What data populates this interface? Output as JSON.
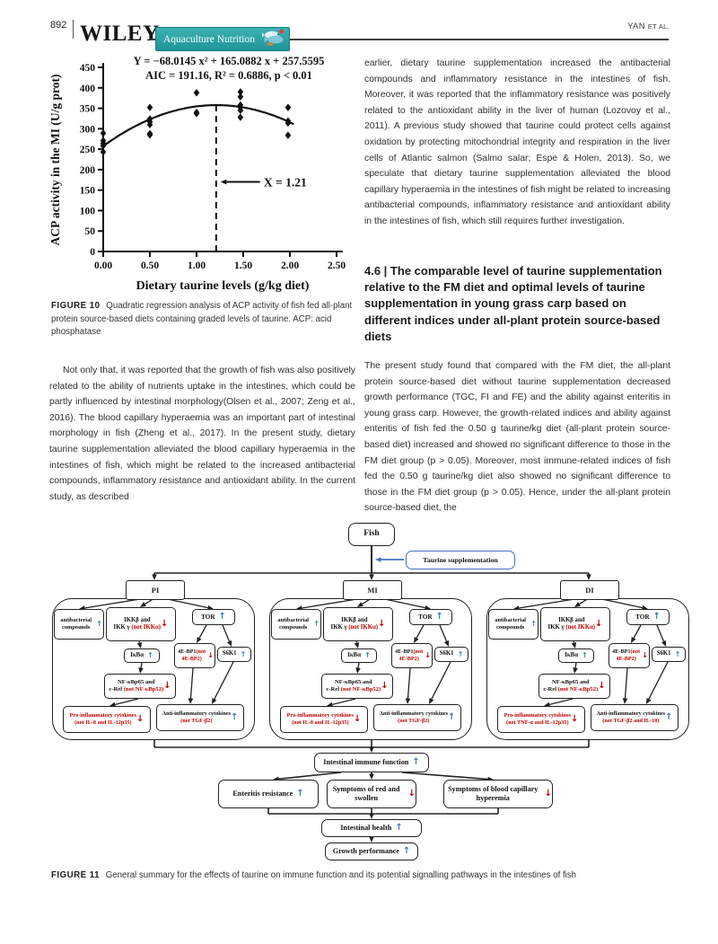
{
  "header": {
    "page_number": "892",
    "publisher": "WILEY",
    "journal": "Aquaculture Nutrition",
    "running_head_name": "YAN",
    "running_head_etal": "ET AL."
  },
  "chart_data": {
    "type": "scatter",
    "title_line1": "Y = −68.0145 x² + 165.0882 x + 257.5595",
    "title_line2": "AIC = 191.16, R² = 0.6886, p < 0.01",
    "xlabel": "Dietary taurine levels (g/kg diet)",
    "ylabel": "ACP activity in the MI (U/g prot)",
    "xlim": [
      0,
      2.5
    ],
    "ylim": [
      0,
      450
    ],
    "xtick_step": 0.5,
    "ytick_step": 50,
    "grid": false,
    "points": [
      {
        "x": 0.0,
        "y": [
          243,
          258,
          264,
          271,
          289
        ]
      },
      {
        "x": 0.5,
        "y": [
          285,
          288,
          310,
          317,
          324,
          352
        ]
      },
      {
        "x": 1.0,
        "y": [
          337,
          340,
          388
        ]
      },
      {
        "x": 1.47,
        "y": [
          328,
          345,
          352,
          358,
          378,
          390
        ]
      },
      {
        "x": 1.98,
        "y": [
          284,
          314,
          319,
          352
        ]
      }
    ],
    "curve": {
      "type": "quadratic",
      "a": -68.0145,
      "b": 165.0882,
      "c": 257.5595,
      "x_start": 0,
      "x_end": 2.05
    },
    "optimum": {
      "x": 1.21,
      "label": "X = 1.21",
      "annotation_y": 170
    }
  },
  "figure10": {
    "label": "FIGURE 10",
    "caption": "Quadratic regression analysis of ACP activity of fish fed all-plant protein source-based diets containing graded levels of taurine. ACP: acid phosphatase"
  },
  "left_column": {
    "paragraph": "Not only that, it was reported that the growth of fish was also positively related to the ability of nutrients uptake in the intestines, which could be partly influenced by intestinal morphology(Olsen et al., 2007; Zeng et al., 2016). The blood capillary hyperaemia was an important part of intestinal morphology in fish (Zheng et al., 2017). In the present study, dietary taurine supplementation alleviated the blood capillary hyperaemia in the intestines of fish, which might be related to the increased antibacterial compounds, inflammatory resistance and antioxidant ability. In the current study, as described"
  },
  "right_column": {
    "paragraph1": "earlier, dietary taurine supplementation increased the antibacterial compounds and inflammatory resistance in the intestines of fish. Moreover, it was reported that the inflammatory resistance was positively related to the antioxidant ability in the liver of human (Lozovoy et al., 2011). A previous study showed that taurine could protect cells against oxidation by protecting mitochondrial integrity and respiration in the liver cells of Atlantic salmon (Salmo salar; Espe & Holen, 2013). So, we speculate that dietary taurine supplementation alleviated the blood capillary hyperaemia in the intestines of fish might be related to increasing antibacterial compounds, inflammatory resistance and antioxidant ability in the intestines of fish, which still requires further investigation.",
    "section_heading": "4.6  |  The comparable level of taurine supplementation relative to the FM diet and optimal levels of taurine supplementation in young grass carp based on different indices under all-plant protein source-based diets",
    "paragraph2": "The present study found that compared with the FM diet, the all-plant protein source-based diet without taurine supplementation decreased growth performance (TGC, FI and FE) and the ability against enteritis in young grass carp. However, the growth-related indices and ability against enteritis of fish fed the 0.50 g taurine/kg diet (all-plant protein source-based diet) increased and showed no significant difference to those in the FM diet group (p > 0.05). Moreover, most immune-related indices of fish fed the 0.50 g taurine/kg diet also showed no significant difference to those in the FM diet group (p > 0.05). Hence, under the all-plant protein source-based diet, the"
  },
  "figure11": {
    "label": "FIGURE 11",
    "caption": "General summary for the effects of taurine on immune function and its potential signalling pathways in the intestines of fish",
    "fish": "Fish",
    "taurine": "Taurine supplementation",
    "panels": [
      {
        "name": "PI",
        "antibacterial": "antibacterial compounds",
        "ikk1": "IKKβ and",
        "ikk2": "IKK γ",
        "ikk_not": "(not IKKα)",
        "tor": "TOR",
        "ikba": "IκBα",
        "bp1": "4E-BP1",
        "bp1_not": "(not 4E-BP2)",
        "s6k1": "S6K1",
        "nfkb1": "NF-κBp65 and",
        "nfkb2": "c-Rel",
        "nfkb_not": "(not NF-κBp52)",
        "pro": "Pro-inflammatory cytokines",
        "pro_not": "(not IL-8 and IL-12p35)",
        "anti": "Anti-inflammatory cytokines",
        "anti_not": "(not TGF-β2)"
      },
      {
        "name": "MI",
        "antibacterial": "antibacterial compounds",
        "ikk1": "IKKβ and",
        "ikk2": "IKK γ",
        "ikk_not": "(not IKKα)",
        "tor": "TOR",
        "ikba": "IκBα",
        "bp1": "4E-BP1",
        "bp1_not": "(not 4E-BP2)",
        "s6k1": "S6K1",
        "nfkb1": "NF-κBp65 and",
        "nfkb2": "c-Rel",
        "nfkb_not": "(not NF-κBp52)",
        "pro": "Pro-inflammatory cytokines",
        "pro_not": "(not IL-8 and IL-12p35)",
        "anti": "Anti-inflammatory cytokines",
        "anti_not": "(not TGF-β2)"
      },
      {
        "name": "DI",
        "antibacterial": "antibacterial compounds",
        "ikk1": "IKKβ and",
        "ikk2": "IKK γ",
        "ikk_not": "(not IKKα)",
        "tor": "TOR",
        "ikba": "IκBα",
        "bp1": "4E-BP1",
        "bp1_not": "(not 4E-BP2)",
        "s6k1": "S6K1",
        "nfkb1": "NF-κBp65 and",
        "nfkb2": "c-Rel",
        "nfkb_not": "(not NF-κBp52)",
        "pro": "Pro-inflammatory cytokines",
        "pro_not": "(not TNF-α and IL-12p35)",
        "anti": "Anti-inflammatory cytokines",
        "anti_not": "(not TGF-β2 and IL-10)"
      }
    ],
    "bottom": {
      "iif": "Intestinal immune function",
      "enteritis": "Enteritis resistance",
      "red_swollen": "Symptoms of red and swollen",
      "hyperemia": "Symptoms of blood capillary hyperemia",
      "health": "Intestinal health",
      "growth": "Growth performance"
    }
  },
  "icons": {
    "up_arrow": "↑",
    "down_arrow": "↓"
  },
  "colors": {
    "accent_blue": "#4472C4",
    "accent_red": "#C00000",
    "banner_teal": "#2AA7AB",
    "ink": "#111111"
  }
}
